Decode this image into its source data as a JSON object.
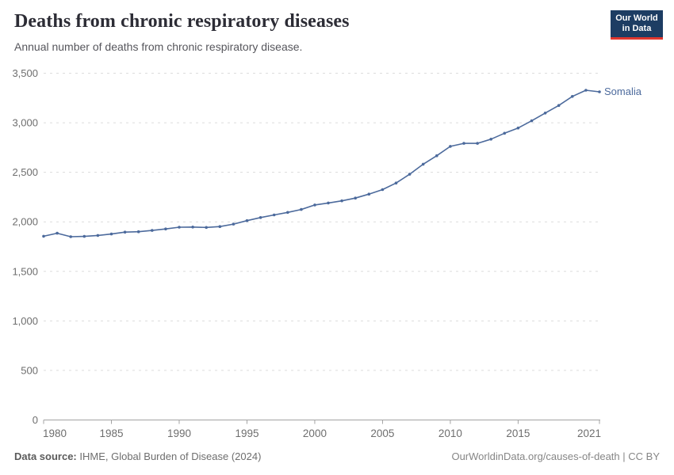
{
  "header": {
    "title": "Deaths from chronic respiratory diseases",
    "subtitle": "Annual number of deaths from chronic respiratory disease."
  },
  "logo": {
    "line1": "Our World",
    "line2": "in Data",
    "bg_color": "#1d3d63",
    "accent_color": "#e0372e"
  },
  "chart_data": {
    "type": "line",
    "title": "Deaths from chronic respiratory diseases",
    "xlabel": "",
    "ylabel": "",
    "ylim": [
      0,
      3500
    ],
    "yticks": [
      0,
      500,
      1000,
      1500,
      2000,
      2500,
      3000,
      3500
    ],
    "xticks": [
      1980,
      1985,
      1990,
      1995,
      2000,
      2005,
      2010,
      2015,
      2021
    ],
    "grid": "horizontal-dashed",
    "legend_position": "end-of-line-label",
    "x": [
      1980,
      1981,
      1982,
      1983,
      1984,
      1985,
      1986,
      1987,
      1988,
      1989,
      1990,
      1991,
      1992,
      1993,
      1994,
      1995,
      1996,
      1997,
      1998,
      1999,
      2000,
      2001,
      2002,
      2003,
      2004,
      2005,
      2006,
      2007,
      2008,
      2009,
      2010,
      2011,
      2012,
      2013,
      2014,
      2015,
      2016,
      2017,
      2018,
      2019,
      2020,
      2021
    ],
    "series": [
      {
        "name": "Somalia",
        "color": "#4c6a9c",
        "values": [
          1855,
          1885,
          1850,
          1853,
          1863,
          1877,
          1896,
          1900,
          1913,
          1928,
          1946,
          1947,
          1943,
          1952,
          1977,
          2012,
          2043,
          2070,
          2095,
          2125,
          2170,
          2190,
          2212,
          2240,
          2280,
          2325,
          2392,
          2480,
          2582,
          2667,
          2762,
          2792,
          2792,
          2834,
          2894,
          2947,
          3020,
          3098,
          3175,
          3266,
          3328,
          3312
        ]
      }
    ],
    "colors": {
      "gridline": "#dcdcdc",
      "axis": "#a3a3a3",
      "tick_label": "#6e6e6e"
    }
  },
  "footer": {
    "source_label": "Data source:",
    "source_text": " IHME, Global Burden of Disease (2024)",
    "link_text": "OurWorldinData.org/causes-of-death",
    "license_text": " | CC BY"
  }
}
